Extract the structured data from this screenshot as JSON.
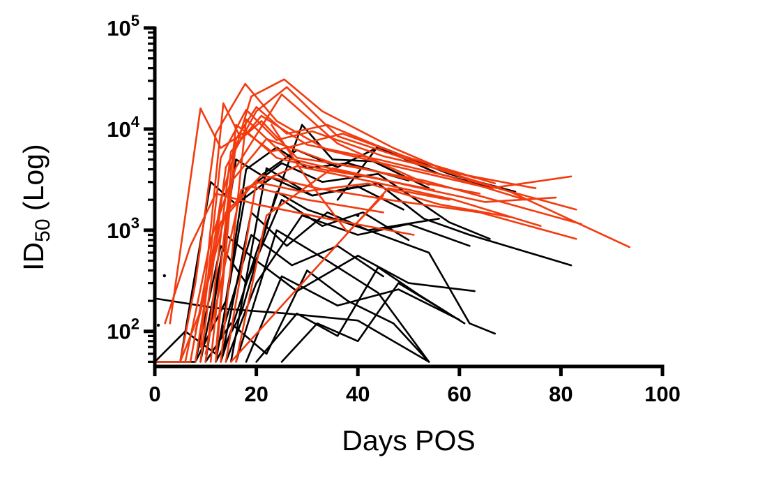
{
  "chart_data": {
    "type": "line",
    "title": "",
    "xlabel": "Days POS",
    "ylabel": "ID50 (Log)",
    "ylabel_parts": {
      "pre": "ID",
      "sub": "50",
      "post": " (Log)"
    },
    "y_scale": "log",
    "grid": false,
    "legend": null,
    "xlim": [
      0,
      100
    ],
    "ylim": [
      45,
      100000
    ],
    "x_ticks": [
      0,
      20,
      40,
      60,
      80,
      100
    ],
    "y_ticks": [
      100,
      1000,
      10000,
      100000
    ],
    "colors": {
      "red": "#F23B0F",
      "black": "#000000"
    },
    "line_width": 2.6,
    "series": [
      {
        "id": "b1",
        "color": "black",
        "points": [
          [
            0,
            50
          ],
          [
            8,
            50
          ],
          [
            14,
            200
          ],
          [
            18,
            4000
          ],
          [
            24,
            6600
          ],
          [
            30,
            4100
          ],
          [
            38,
            4600
          ],
          [
            50,
            3100
          ]
        ]
      },
      {
        "id": "b2",
        "color": "black",
        "points": [
          [
            0.5,
            210
          ],
          [
            12,
            170
          ],
          [
            26,
            150
          ],
          [
            40,
            128
          ],
          [
            54,
            50
          ]
        ]
      },
      {
        "id": "b3",
        "color": "black",
        "points": [
          [
            10,
            50
          ],
          [
            16,
            5000
          ],
          [
            21,
            3500
          ],
          [
            28,
            6200
          ],
          [
            36,
            4200
          ],
          [
            44,
            6600
          ],
          [
            56,
            3600
          ],
          [
            66,
            2700
          ],
          [
            71,
            2400
          ]
        ]
      },
      {
        "id": "b4",
        "color": "black",
        "points": [
          [
            12,
            50
          ],
          [
            18,
            2500
          ],
          [
            25,
            4600
          ],
          [
            33,
            3000
          ],
          [
            44,
            3600
          ],
          [
            58,
            1200
          ],
          [
            66,
            820
          ]
        ]
      },
      {
        "id": "b5",
        "color": "black",
        "points": [
          [
            13,
            50
          ],
          [
            19,
            1500
          ],
          [
            26,
            700
          ],
          [
            34,
            1500
          ],
          [
            42,
            1000
          ],
          [
            54,
            600
          ],
          [
            62,
            120
          ],
          [
            67,
            95
          ]
        ]
      },
      {
        "id": "b6",
        "color": "black",
        "points": [
          [
            14,
            50
          ],
          [
            20,
            300
          ],
          [
            29,
            1400
          ],
          [
            40,
            900
          ],
          [
            50,
            1150
          ],
          [
            62,
            700
          ]
        ]
      },
      {
        "id": "b7",
        "color": "black",
        "points": [
          [
            15,
            50
          ],
          [
            22,
            4100
          ],
          [
            31,
            2200
          ],
          [
            44,
            2900
          ],
          [
            53,
            1300
          ],
          [
            62,
            900
          ],
          [
            82,
            450
          ]
        ]
      },
      {
        "id": "b8",
        "color": "black",
        "points": [
          [
            16,
            50
          ],
          [
            24,
            1000
          ],
          [
            34,
            500
          ],
          [
            44,
            240
          ],
          [
            54,
            50
          ]
        ]
      },
      {
        "id": "b9",
        "color": "black",
        "points": [
          [
            18,
            50
          ],
          [
            25,
            350
          ],
          [
            36,
            180
          ],
          [
            48,
            260
          ],
          [
            60,
            130
          ]
        ]
      },
      {
        "id": "b10",
        "color": "black",
        "points": [
          [
            10,
            50
          ],
          [
            15,
            120
          ],
          [
            22,
            60
          ],
          [
            30,
            400
          ],
          [
            38,
            200
          ],
          [
            47,
            120
          ],
          [
            54,
            50
          ]
        ]
      },
      {
        "id": "b11",
        "color": "black",
        "points": [
          [
            20,
            50
          ],
          [
            28,
            150
          ],
          [
            36,
            90
          ],
          [
            44,
            430
          ],
          [
            52,
            230
          ],
          [
            61,
            120
          ]
        ]
      },
      {
        "id": "b12",
        "color": "black",
        "points": [
          [
            8,
            50
          ],
          [
            13,
            700
          ],
          [
            18,
            300
          ],
          [
            25,
            2000
          ],
          [
            33,
            1100
          ],
          [
            41,
            1500
          ],
          [
            50,
            800
          ]
        ]
      },
      {
        "id": "b13",
        "color": "black",
        "points": [
          [
            0,
            50
          ],
          [
            6,
            100
          ],
          [
            12,
            60
          ],
          [
            19,
            900
          ],
          [
            27,
            450
          ],
          [
            36,
            700
          ],
          [
            45,
            350
          ]
        ]
      },
      {
        "id": "b14",
        "color": "black",
        "points": [
          [
            25,
            50
          ],
          [
            32,
            120
          ],
          [
            40,
            80
          ],
          [
            48,
            300
          ],
          [
            57,
            160
          ]
        ]
      },
      {
        "id": "b15",
        "color": "black",
        "points": [
          [
            5,
            50
          ],
          [
            11,
            3000
          ],
          [
            16,
            1800
          ],
          [
            23,
            3300
          ],
          [
            31,
            2200
          ],
          [
            40,
            2700
          ],
          [
            49,
            1600
          ]
        ]
      },
      {
        "id": "b16",
        "color": "black",
        "points": [
          [
            36,
            2000
          ],
          [
            44,
            6800
          ],
          [
            58,
            3600
          ],
          [
            71,
            2400
          ]
        ]
      },
      {
        "id": "b17",
        "color": "black",
        "points": [
          [
            12,
            50
          ],
          [
            17,
            150
          ],
          [
            24,
            2400
          ],
          [
            30,
            1600
          ],
          [
            42,
            1000
          ],
          [
            56,
            1300
          ]
        ]
      },
      {
        "id": "b18",
        "color": "black",
        "points": [
          [
            9,
            50
          ],
          [
            14,
            900
          ],
          [
            20,
            500
          ],
          [
            28,
            250
          ],
          [
            40,
            560
          ],
          [
            50,
            300
          ],
          [
            63,
            250
          ]
        ]
      },
      {
        "id": "b19",
        "color": "black",
        "points": [
          [
            13,
            50
          ],
          [
            20,
            600
          ],
          [
            29,
            11000
          ],
          [
            35,
            5000
          ],
          [
            43,
            4800
          ],
          [
            54,
            2600
          ]
        ]
      },
      {
        "id": "r1",
        "color": "red",
        "points": [
          [
            0,
            50
          ],
          [
            7,
            50
          ],
          [
            10,
            330
          ],
          [
            13.5,
            18000
          ],
          [
            17,
            8000
          ],
          [
            21,
            12000
          ],
          [
            28,
            5200
          ],
          [
            40,
            4200
          ],
          [
            52,
            3000
          ],
          [
            64,
            2300
          ]
        ]
      },
      {
        "id": "r2",
        "color": "red",
        "points": [
          [
            3,
            120
          ],
          [
            9,
            16000
          ],
          [
            13,
            6500
          ],
          [
            18,
            9500
          ],
          [
            24,
            5200
          ],
          [
            33,
            4000
          ],
          [
            43,
            3300
          ]
        ]
      },
      {
        "id": "r3",
        "color": "red",
        "points": [
          [
            5,
            50
          ],
          [
            8,
            300
          ],
          [
            12,
            9000
          ],
          [
            17.8,
            28000
          ],
          [
            24,
            12000
          ],
          [
            34,
            6200
          ],
          [
            48,
            4200
          ],
          [
            66,
            2600
          ],
          [
            82,
            3400
          ]
        ]
      },
      {
        "id": "r4",
        "color": "red",
        "points": [
          [
            8,
            50
          ],
          [
            13,
            2000
          ],
          [
            19,
            21000
          ],
          [
            25.5,
            31000
          ],
          [
            33,
            15000
          ],
          [
            47,
            6500
          ],
          [
            62,
            3100
          ],
          [
            83,
            1600
          ]
        ]
      },
      {
        "id": "r5",
        "color": "red",
        "points": [
          [
            9,
            50
          ],
          [
            14,
            4200
          ],
          [
            20,
            15000
          ],
          [
            26,
            26000
          ],
          [
            36,
            8500
          ],
          [
            52,
            4600
          ],
          [
            70,
            2400
          ],
          [
            93.5,
            680
          ]
        ]
      },
      {
        "id": "r6",
        "color": "red",
        "points": [
          [
            10,
            50
          ],
          [
            15,
            6000
          ],
          [
            21,
            13500
          ],
          [
            30,
            7000
          ],
          [
            44,
            5000
          ],
          [
            58,
            3400
          ],
          [
            73,
            2000
          ]
        ]
      },
      {
        "id": "r7",
        "color": "red",
        "points": [
          [
            11,
            50
          ],
          [
            16,
            11000
          ],
          [
            23,
            6000
          ],
          [
            37,
            9000
          ],
          [
            50,
            5200
          ],
          [
            67,
            2900
          ]
        ]
      },
      {
        "id": "r8",
        "color": "red",
        "points": [
          [
            12,
            50
          ],
          [
            16,
            8000
          ],
          [
            20,
            16500
          ],
          [
            26,
            9000
          ],
          [
            34,
            11000
          ],
          [
            48,
            5600
          ],
          [
            63,
            3300
          ]
        ]
      },
      {
        "id": "r9",
        "color": "red",
        "points": [
          [
            12,
            60
          ],
          [
            15,
            3000
          ],
          [
            22,
            8000
          ],
          [
            35,
            4600
          ],
          [
            53,
            3100
          ],
          [
            70,
            1800
          ],
          [
            84,
            1150
          ]
        ]
      },
      {
        "id": "r10",
        "color": "red",
        "points": [
          [
            13,
            50
          ],
          [
            18,
            12500
          ],
          [
            26,
            5200
          ],
          [
            39,
            3600
          ],
          [
            55,
            2500
          ]
        ]
      },
      {
        "id": "r11",
        "color": "red",
        "points": [
          [
            6,
            50
          ],
          [
            11,
            800
          ],
          [
            16,
            4200
          ],
          [
            25,
            22000
          ],
          [
            36,
            7200
          ],
          [
            54,
            2800
          ]
        ]
      },
      {
        "id": "r12",
        "color": "red",
        "points": [
          [
            8,
            100
          ],
          [
            14,
            1500
          ],
          [
            21,
            3500
          ],
          [
            32,
            2600
          ],
          [
            46,
            2000
          ],
          [
            64,
            1500
          ],
          [
            83,
            820
          ]
        ]
      },
      {
        "id": "r13",
        "color": "red",
        "points": [
          [
            10,
            60
          ],
          [
            17,
            2500
          ],
          [
            28,
            4300
          ],
          [
            43,
            3000
          ],
          [
            59,
            2000
          ],
          [
            76,
            1100
          ]
        ]
      },
      {
        "id": "r14",
        "color": "red",
        "points": [
          [
            14,
            50
          ],
          [
            20,
            3000
          ],
          [
            29,
            2400
          ],
          [
            42,
            2900
          ],
          [
            56,
            1800
          ],
          [
            70,
            1350
          ]
        ]
      },
      {
        "id": "r15",
        "color": "red",
        "points": [
          [
            5,
            50
          ],
          [
            9,
            160
          ],
          [
            13,
            1200
          ],
          [
            19,
            2700
          ],
          [
            30,
            2000
          ],
          [
            45,
            1500
          ]
        ]
      },
      {
        "id": "r16",
        "color": "red",
        "points": [
          [
            2,
            120
          ],
          [
            7,
            700
          ],
          [
            12,
            2300
          ],
          [
            20,
            1800
          ],
          [
            34,
            1300
          ],
          [
            51,
            900
          ]
        ]
      },
      {
        "id": "r17",
        "color": "red",
        "points": [
          [
            16,
            50
          ],
          [
            22,
            1400
          ],
          [
            35,
            4100
          ],
          [
            51,
            2700
          ],
          [
            65,
            1900
          ],
          [
            79,
            2100
          ]
        ]
      },
      {
        "id": "r18",
        "color": "red",
        "points": [
          [
            15,
            50
          ],
          [
            46,
            2600
          ],
          [
            58,
            2000
          ]
        ]
      },
      {
        "id": "r19",
        "color": "red",
        "points": [
          [
            23,
            11000
          ],
          [
            30,
            3200
          ],
          [
            38,
            950
          ],
          [
            45,
            2200
          ]
        ]
      },
      {
        "id": "r20",
        "color": "red",
        "points": [
          [
            9,
            70
          ],
          [
            13,
            5200
          ],
          [
            18,
            15500
          ],
          [
            24,
            7800
          ],
          [
            31,
            9500
          ],
          [
            45,
            5400
          ],
          [
            60,
            3600
          ],
          [
            75,
            2600
          ]
        ]
      }
    ],
    "points": [
      {
        "x": 0.7,
        "y": 115,
        "color": "black"
      },
      {
        "x": 1.9,
        "y": 355,
        "color": "black"
      },
      {
        "x": 40,
        "y": 1400,
        "color": "black"
      }
    ]
  }
}
